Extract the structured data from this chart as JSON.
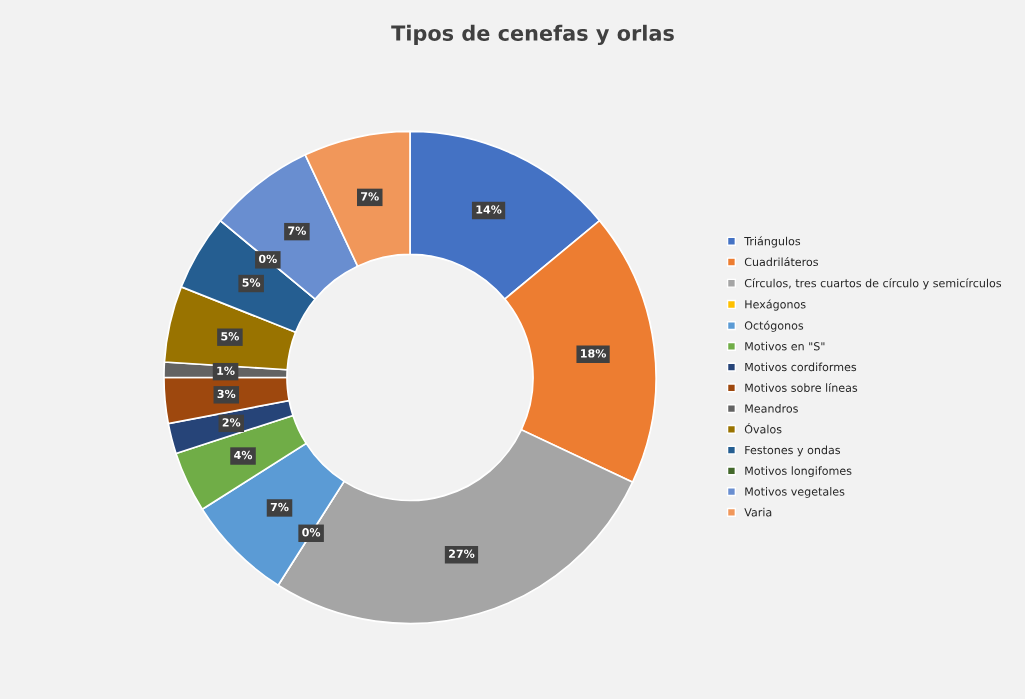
{
  "chart_data": {
    "type": "donut",
    "title": "Tipos de cenefas y orlas",
    "categories": [
      "Triángulos",
      "Cuadriláteros",
      "Círculos, tres cuartos de círculo y semicírculos",
      "Hexágonos",
      "Octógonos",
      "Motivos en \"S\"",
      "Motivos cordiformes",
      "Motivos sobre líneas",
      "Meandros",
      "Óvalos",
      "Festones y ondas",
      "Motivos longifomes",
      "Motivos vegetales",
      "Varia"
    ],
    "values": [
      14,
      18,
      27,
      0,
      7,
      4,
      2,
      3,
      1,
      5,
      5,
      0,
      7,
      7
    ],
    "value_labels": [
      "14%",
      "18%",
      "27%",
      "0%",
      "7%",
      "4%",
      "2%",
      "3%",
      "1%",
      "5%",
      "5%",
      "0%",
      "7%",
      "7%"
    ],
    "colors": [
      "#4472c4",
      "#ed7d31",
      "#a5a5a5",
      "#ffc000",
      "#5b9bd5",
      "#70ad47",
      "#264478",
      "#9e480e",
      "#636363",
      "#997300",
      "#255e91",
      "#43682b",
      "#698ed0",
      "#f1975a"
    ],
    "legend": "right"
  }
}
